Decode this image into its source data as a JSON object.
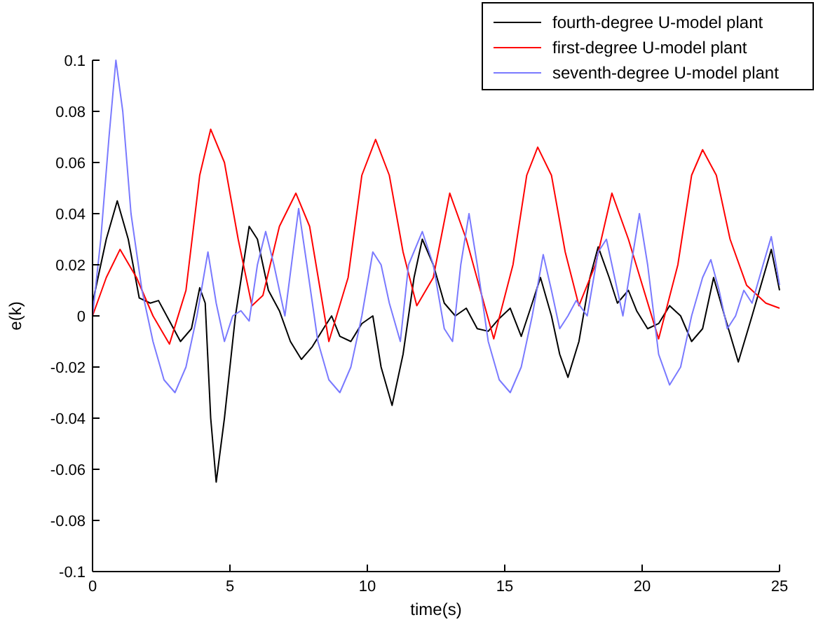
{
  "chart_data": {
    "type": "line",
    "xlabel": "time(s)",
    "ylabel": "e(k)",
    "xlim": [
      0,
      25
    ],
    "ylim": [
      -0.1,
      0.1
    ],
    "xticks": [
      0,
      5,
      10,
      15,
      20,
      25
    ],
    "yticks": [
      -0.1,
      -0.08,
      -0.06,
      -0.04,
      -0.02,
      0,
      0.02,
      0.04,
      0.06,
      0.08,
      0.1
    ],
    "grid": false,
    "legend": "top right",
    "series": [
      {
        "name": "fourth-degree U-model plant",
        "color": "#000000",
        "x": [
          0,
          0.5,
          0.9,
          1.3,
          1.7,
          2.1,
          2.4,
          2.8,
          3.2,
          3.6,
          3.9,
          4.1,
          4.3,
          4.5,
          4.8,
          5.2,
          5.7,
          6.0,
          6.4,
          6.8,
          7.2,
          7.6,
          8.0,
          8.4,
          8.7,
          9.0,
          9.4,
          9.8,
          10.2,
          10.5,
          10.9,
          11.3,
          11.7,
          12.0,
          12.4,
          12.8,
          13.2,
          13.6,
          14.0,
          14.4,
          14.8,
          15.2,
          15.6,
          16.0,
          16.3,
          16.7,
          17.0,
          17.3,
          17.7,
          18.1,
          18.4,
          18.8,
          19.1,
          19.5,
          19.8,
          20.2,
          20.6,
          21.0,
          21.4,
          21.8,
          22.2,
          22.6,
          23.0,
          23.5,
          24.0,
          24.7,
          25
        ],
        "values": [
          0.005,
          0.03,
          0.045,
          0.03,
          0.007,
          0.005,
          0.006,
          -0.002,
          -0.01,
          -0.005,
          0.011,
          0.005,
          -0.04,
          -0.065,
          -0.04,
          0.0,
          0.035,
          0.03,
          0.01,
          0.002,
          -0.01,
          -0.017,
          -0.012,
          -0.005,
          0.0,
          -0.008,
          -0.01,
          -0.003,
          0.0,
          -0.02,
          -0.035,
          -0.015,
          0.015,
          0.03,
          0.02,
          0.005,
          0.0,
          0.003,
          -0.005,
          -0.006,
          -0.001,
          0.003,
          -0.008,
          0.005,
          0.015,
          0.0,
          -0.015,
          -0.024,
          -0.01,
          0.015,
          0.027,
          0.015,
          0.005,
          0.01,
          0.002,
          -0.005,
          -0.003,
          0.004,
          0.0,
          -0.01,
          -0.005,
          0.015,
          0.0,
          -0.018,
          0.0,
          0.026,
          0.01
        ]
      },
      {
        "name": "first-degree U-model plant",
        "color": "#ff0000",
        "x": [
          0,
          0.5,
          1.0,
          1.6,
          2.2,
          2.8,
          3.4,
          3.9,
          4.3,
          4.8,
          5.3,
          5.8,
          6.2,
          6.8,
          7.4,
          7.9,
          8.6,
          9.3,
          9.8,
          10.3,
          10.8,
          11.3,
          11.8,
          12.4,
          13.0,
          13.6,
          14.6,
          15.3,
          15.8,
          16.2,
          16.7,
          17.2,
          17.7,
          18.3,
          18.9,
          19.5,
          20.6,
          21.3,
          21.8,
          22.2,
          22.7,
          23.2,
          23.8,
          24.5,
          25
        ],
        "values": [
          0.0,
          0.015,
          0.026,
          0.015,
          0.0,
          -0.011,
          0.01,
          0.055,
          0.073,
          0.06,
          0.03,
          0.004,
          0.008,
          0.035,
          0.048,
          0.035,
          -0.01,
          0.015,
          0.055,
          0.069,
          0.055,
          0.025,
          0.004,
          0.015,
          0.048,
          0.03,
          -0.009,
          0.02,
          0.055,
          0.066,
          0.055,
          0.025,
          0.004,
          0.02,
          0.048,
          0.03,
          -0.009,
          0.02,
          0.055,
          0.065,
          0.055,
          0.03,
          0.012,
          0.005,
          0.003
        ]
      },
      {
        "name": "seventh-degree U-model plant",
        "color": "#7a7aff",
        "x": [
          0,
          0.3,
          0.6,
          0.85,
          1.1,
          1.4,
          1.8,
          2.2,
          2.6,
          3.0,
          3.4,
          3.8,
          4.2,
          4.5,
          4.8,
          5.1,
          5.4,
          5.7,
          6.0,
          6.3,
          6.6,
          7.0,
          7.5,
          7.8,
          8.2,
          8.6,
          9.0,
          9.4,
          9.8,
          10.2,
          10.5,
          10.8,
          11.2,
          11.5,
          12.0,
          12.4,
          12.8,
          13.1,
          13.4,
          13.7,
          14.0,
          14.4,
          14.8,
          15.2,
          15.6,
          16.0,
          16.4,
          16.7,
          17.0,
          17.3,
          17.6,
          18.0,
          18.4,
          18.7,
          19.0,
          19.3,
          19.6,
          19.9,
          20.2,
          20.6,
          21.0,
          21.4,
          21.8,
          22.2,
          22.5,
          22.8,
          23.1,
          23.4,
          23.7,
          24.0,
          24.4,
          24.7,
          25
        ],
        "values": [
          0.0,
          0.03,
          0.07,
          0.1,
          0.08,
          0.04,
          0.01,
          -0.01,
          -0.025,
          -0.03,
          -0.02,
          0.0,
          0.025,
          0.005,
          -0.01,
          0.0,
          0.002,
          -0.002,
          0.02,
          0.033,
          0.02,
          0.0,
          0.042,
          0.02,
          -0.01,
          -0.025,
          -0.03,
          -0.02,
          0.0,
          0.025,
          0.02,
          0.005,
          -0.01,
          0.02,
          0.033,
          0.02,
          -0.005,
          -0.01,
          0.02,
          0.04,
          0.02,
          -0.01,
          -0.025,
          -0.03,
          -0.02,
          0.0,
          0.024,
          0.01,
          -0.005,
          0.0,
          0.006,
          0.0,
          0.025,
          0.03,
          0.015,
          0.0,
          0.02,
          0.04,
          0.02,
          -0.015,
          -0.027,
          -0.02,
          0.0,
          0.015,
          0.022,
          0.01,
          -0.005,
          0.0,
          0.01,
          0.005,
          0.02,
          0.031,
          0.012
        ]
      }
    ]
  }
}
